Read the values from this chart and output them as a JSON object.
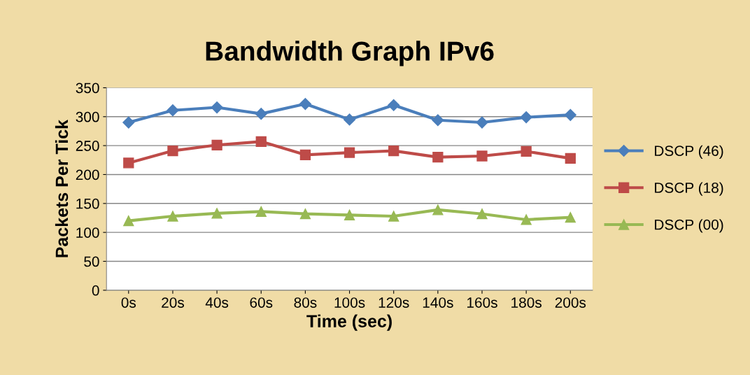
{
  "chart_data": {
    "type": "line",
    "title": "Bandwidth Graph IPv6",
    "xlabel": "Time (sec)",
    "ylabel": "Packets Per Tick",
    "categories": [
      "0s",
      "20s",
      "40s",
      "60s",
      "80s",
      "100s",
      "120s",
      "140s",
      "160s",
      "180s",
      "200s"
    ],
    "series": [
      {
        "name": "DSCP (46)",
        "color": "#4a7ebb",
        "marker": "diamond",
        "values": [
          290,
          311,
          316,
          305,
          322,
          295,
          320,
          294,
          290,
          299,
          303
        ]
      },
      {
        "name": "DSCP (18)",
        "color": "#be4b48",
        "marker": "square",
        "values": [
          220,
          241,
          251,
          257,
          234,
          238,
          241,
          230,
          232,
          240,
          228
        ]
      },
      {
        "name": "DSCP (00)",
        "color": "#98b954",
        "marker": "triangle",
        "values": [
          120,
          128,
          133,
          136,
          132,
          130,
          128,
          139,
          132,
          122,
          126
        ]
      }
    ],
    "ylim": [
      0,
      350
    ],
    "yticks": [
      0,
      50,
      100,
      150,
      200,
      250,
      300,
      350
    ],
    "grid": "y",
    "legend": "right"
  }
}
